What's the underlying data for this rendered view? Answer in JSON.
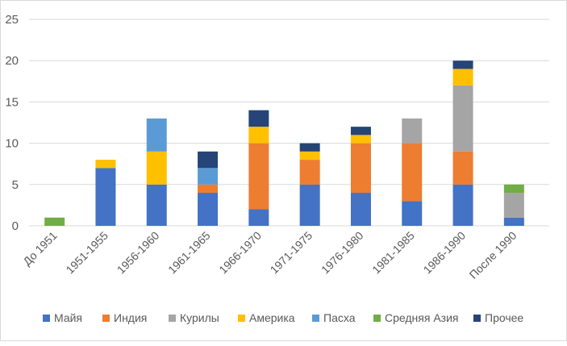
{
  "chart_data": {
    "type": "bar",
    "stacked": true,
    "categories": [
      "До 1951",
      "1951-1955",
      "1956-1960",
      "1961-1965",
      "1966-1970",
      "1971-1975",
      "1976-1980",
      "1981-1985",
      "1986-1990",
      "После 1990"
    ],
    "series": [
      {
        "name": "Майя",
        "color": "#4472C4",
        "values": [
          0,
          7,
          5,
          4,
          2,
          5,
          4,
          3,
          5,
          1
        ]
      },
      {
        "name": "Индия",
        "color": "#ED7D31",
        "values": [
          0,
          0,
          0,
          1,
          8,
          3,
          6,
          7,
          4,
          0
        ]
      },
      {
        "name": "Курилы",
        "color": "#A5A5A5",
        "values": [
          0,
          0,
          0,
          0,
          0,
          0,
          0,
          3,
          8,
          3
        ]
      },
      {
        "name": "Америка",
        "color": "#FFC000",
        "values": [
          0,
          1,
          4,
          0,
          2,
          1,
          1,
          0,
          2,
          0
        ]
      },
      {
        "name": "Пасха",
        "color": "#5B9BD5",
        "values": [
          0,
          0,
          4,
          2,
          0,
          0,
          0,
          0,
          0,
          0
        ]
      },
      {
        "name": "Средняя Азия",
        "color": "#70AD47",
        "values": [
          1,
          0,
          0,
          0,
          0,
          0,
          0,
          0,
          0,
          1
        ]
      },
      {
        "name": "Прочее",
        "color": "#264478",
        "values": [
          0,
          0,
          0,
          2,
          2,
          1,
          1,
          0,
          1,
          0
        ]
      }
    ],
    "yticks": [
      "0",
      "5",
      "10",
      "15",
      "20",
      "25"
    ],
    "ylim": [
      0,
      25
    ],
    "grid": true,
    "legend": "bottom"
  }
}
